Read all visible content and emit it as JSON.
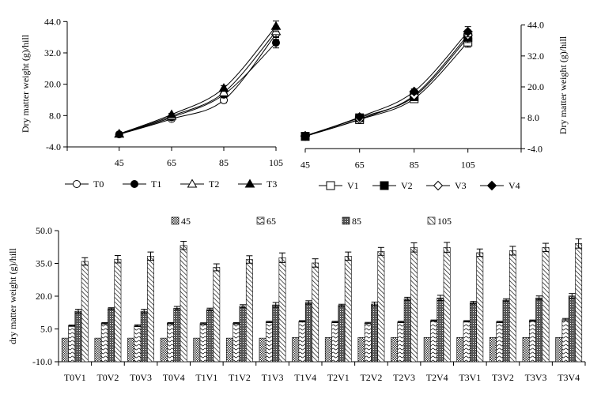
{
  "chart_data": [
    {
      "type": "line",
      "ylabel": "Dry matter weight (g)/hill",
      "x": [
        45,
        65,
        85,
        105
      ],
      "x_tick_labels": [
        "45",
        "65",
        "85",
        "105"
      ],
      "y_tick_labels": [
        "-4.0",
        "8.0",
        "20.0",
        "32.0",
        "44.0"
      ],
      "ylim": [
        -4,
        44
      ],
      "yticks": [
        -4,
        8,
        20,
        32,
        44
      ],
      "legend_position": "bottom",
      "series": [
        {
          "name": "T0",
          "marker": "circle-open",
          "values": [
            0.8,
            6.7,
            13.9,
            39.2
          ],
          "errors": [
            0.3,
            0.4,
            1.0,
            2.0
          ]
        },
        {
          "name": "T1",
          "marker": "circle-filled",
          "values": [
            0.8,
            7.3,
            16.0,
            35.9
          ],
          "errors": [
            0.3,
            0.4,
            1.0,
            2.0
          ]
        },
        {
          "name": "T2",
          "marker": "triangle-open",
          "values": [
            0.9,
            7.8,
            16.8,
            40.2
          ],
          "errors": [
            0.3,
            0.4,
            1.0,
            2.0
          ]
        },
        {
          "name": "T3",
          "marker": "triangle-filled",
          "values": [
            1.0,
            8.4,
            18.5,
            42.2
          ],
          "errors": [
            0.3,
            0.4,
            1.0,
            2.0
          ]
        }
      ]
    },
    {
      "type": "line",
      "ylabel": "Dry matter weight (g)/hill",
      "x": [
        45,
        65,
        85,
        105
      ],
      "x_tick_labels": [
        "45",
        "65",
        "85",
        "105"
      ],
      "y_tick_labels": [
        "-4.0",
        "8.0",
        "20.0",
        "32.0",
        "44.0"
      ],
      "ylim": [
        -4,
        44
      ],
      "yticks": [
        -4,
        8,
        20,
        32,
        44
      ],
      "legend_position": "bottom",
      "series": [
        {
          "name": "V1",
          "marker": "square-open",
          "values": [
            0.8,
            7.3,
            15.4,
            37.4
          ],
          "errors": [
            0.3,
            0.4,
            1.0,
            2.0
          ]
        },
        {
          "name": "V2",
          "marker": "square-filled",
          "values": [
            0.8,
            8.0,
            16.2,
            39.2
          ],
          "errors": [
            0.3,
            0.4,
            1.0,
            2.0
          ]
        },
        {
          "name": "V3",
          "marker": "diamond-open",
          "values": [
            0.9,
            7.5,
            16.7,
            40.1
          ],
          "errors": [
            0.3,
            0.4,
            1.0,
            2.0
          ]
        },
        {
          "name": "V4",
          "marker": "diamond-filled",
          "values": [
            1.0,
            8.3,
            18.2,
            41.4
          ],
          "errors": [
            0.3,
            0.4,
            1.0,
            2.0
          ]
        }
      ]
    },
    {
      "type": "bar",
      "ylabel": "dry matter weight (g)/hill",
      "categories": [
        "T0V1",
        "T0V2",
        "T0V3",
        "T0V4",
        "T1V1",
        "T1V2",
        "T1V3",
        "T1V4",
        "T2V1",
        "T2V2",
        "T2V3",
        "T2V4",
        "T3V1",
        "T3V2",
        "T3V3",
        "T3V4"
      ],
      "y_tick_labels": [
        "-10.0",
        "5.0",
        "20.0",
        "35.0",
        "50.0"
      ],
      "ylim": [
        -10,
        50
      ],
      "yticks": [
        -10,
        5,
        20,
        35,
        50
      ],
      "legend_position": "top",
      "series": [
        {
          "name": "45",
          "pattern": "checker",
          "values": [
            0.8,
            0.8,
            0.8,
            0.8,
            0.8,
            0.8,
            0.8,
            1.1,
            1.1,
            1.1,
            1.1,
            1.1,
            1.1,
            1.1,
            1.1,
            1.1
          ],
          "errors": [
            0,
            0,
            0,
            0,
            0,
            0,
            0,
            0,
            0,
            0,
            0,
            0,
            0,
            0,
            0,
            0
          ]
        },
        {
          "name": "65",
          "pattern": "wave",
          "values": [
            6.5,
            7.6,
            6.5,
            7.6,
            7.5,
            7.6,
            8.2,
            8.5,
            8.2,
            7.7,
            8.2,
            8.8,
            8.5,
            8.2,
            8.8,
            9.3
          ],
          "errors": [
            0.3,
            0.3,
            0.4,
            0.3,
            0.3,
            0.3,
            0.3,
            0.3,
            0.3,
            0.3,
            0.3,
            0.3,
            0.3,
            0.3,
            0.3,
            0.5
          ]
        },
        {
          "name": "85",
          "pattern": "crosshatch",
          "values": [
            13.1,
            14.3,
            13.1,
            14.5,
            13.9,
            15.4,
            16.0,
            17.1,
            15.8,
            16.4,
            18.8,
            19.2,
            17.0,
            18.2,
            19.2,
            20.1
          ],
          "errors": [
            0.9,
            0.4,
            0.9,
            0.8,
            0.6,
            0.7,
            1.1,
            0.8,
            0.5,
            0.9,
            0.7,
            1.2,
            0.6,
            0.6,
            0.9,
            1.1
          ]
        },
        {
          "name": "105",
          "pattern": "diagonal",
          "values": [
            35.9,
            36.9,
            38.3,
            43.2,
            33.2,
            36.8,
            37.6,
            35.2,
            38.3,
            40.5,
            42.3,
            42.3,
            39.9,
            40.8,
            42.3,
            44.1
          ],
          "errors": [
            1.7,
            1.7,
            1.9,
            1.9,
            1.6,
            1.7,
            2.2,
            1.9,
            1.9,
            1.8,
            2.1,
            2.3,
            1.7,
            2.0,
            1.9,
            2.1
          ]
        }
      ]
    }
  ]
}
